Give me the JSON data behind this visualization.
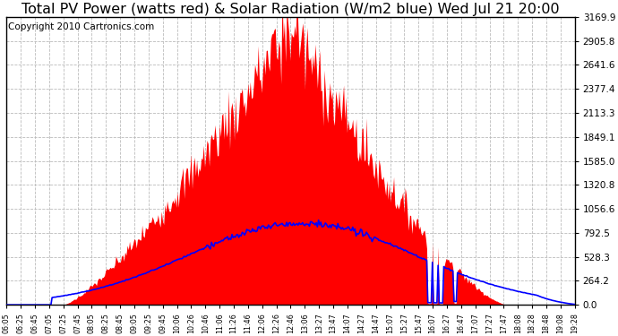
{
  "title": "Total PV Power (watts red) & Solar Radiation (W/m2 blue) Wed Jul 21 20:00",
  "copyright": "Copyright 2010 Cartronics.com",
  "ymax": 3169.9,
  "yticks": [
    0.0,
    264.2,
    528.3,
    792.5,
    1056.6,
    1320.8,
    1585.0,
    1849.1,
    2113.3,
    2377.4,
    2641.6,
    2905.8,
    3169.9
  ],
  "xtick_labels": [
    "06:05",
    "06:25",
    "06:45",
    "07:05",
    "07:25",
    "07:45",
    "08:05",
    "08:25",
    "08:45",
    "09:05",
    "09:25",
    "09:45",
    "10:06",
    "10:26",
    "10:46",
    "11:06",
    "11:26",
    "11:46",
    "12:06",
    "12:26",
    "12:46",
    "13:06",
    "13:27",
    "13:47",
    "14:07",
    "14:27",
    "14:47",
    "15:07",
    "15:27",
    "15:47",
    "16:07",
    "16:27",
    "16:47",
    "17:07",
    "17:27",
    "17:47",
    "18:08",
    "18:28",
    "18:48",
    "19:08",
    "19:28"
  ],
  "pv_color": "#FF0000",
  "solar_color": "#0000FF",
  "bg_color": "#FFFFFF",
  "grid_color": "#BBBBBB",
  "title_fontsize": 11.5,
  "copyright_fontsize": 7.5
}
